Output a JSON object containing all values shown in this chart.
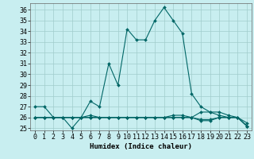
{
  "title": "",
  "xlabel": "Humidex (Indice chaleur)",
  "ylabel": "",
  "background_color": "#c8eef0",
  "grid_color": "#a0cccc",
  "line_color": "#006666",
  "x_values": [
    0,
    1,
    2,
    3,
    4,
    5,
    6,
    7,
    8,
    9,
    10,
    11,
    12,
    13,
    14,
    15,
    16,
    17,
    18,
    19,
    20,
    21,
    22,
    23
  ],
  "series": [
    [
      27.0,
      27.0,
      26.0,
      26.0,
      25.0,
      26.0,
      27.5,
      27.0,
      31.0,
      29.0,
      34.2,
      33.2,
      33.2,
      35.0,
      36.2,
      35.0,
      33.8,
      28.2,
      27.0,
      26.5,
      26.5,
      26.2,
      26.0,
      25.2
    ],
    [
      26.0,
      26.0,
      26.0,
      26.0,
      26.0,
      26.0,
      26.2,
      26.0,
      26.0,
      26.0,
      26.0,
      26.0,
      26.0,
      26.0,
      26.0,
      26.2,
      26.2,
      26.0,
      26.5,
      26.5,
      26.2,
      26.0,
      26.0,
      25.5
    ],
    [
      26.0,
      26.0,
      26.0,
      26.0,
      26.0,
      26.0,
      26.0,
      26.0,
      26.0,
      26.0,
      26.0,
      26.0,
      26.0,
      26.0,
      26.0,
      26.0,
      26.0,
      26.0,
      25.8,
      25.8,
      26.0,
      26.0,
      26.0,
      25.2
    ],
    [
      26.0,
      26.0,
      26.0,
      26.0,
      26.0,
      26.0,
      26.0,
      26.0,
      26.0,
      26.0,
      26.0,
      26.0,
      26.0,
      26.0,
      26.0,
      26.0,
      26.0,
      26.0,
      25.7,
      25.7,
      26.0,
      26.0,
      26.0,
      25.2
    ]
  ],
  "ylim": [
    24.8,
    36.6
  ],
  "xlim": [
    -0.5,
    23.5
  ],
  "yticks": [
    25,
    26,
    27,
    28,
    29,
    30,
    31,
    32,
    33,
    34,
    35,
    36
  ],
  "xticks": [
    0,
    1,
    2,
    3,
    4,
    5,
    6,
    7,
    8,
    9,
    10,
    11,
    12,
    13,
    14,
    15,
    16,
    17,
    18,
    19,
    20,
    21,
    22,
    23
  ],
  "marker": "D",
  "marker_size": 2.0,
  "line_width": 0.8,
  "font_size_ticks": 6,
  "font_size_xlabel": 6.5
}
